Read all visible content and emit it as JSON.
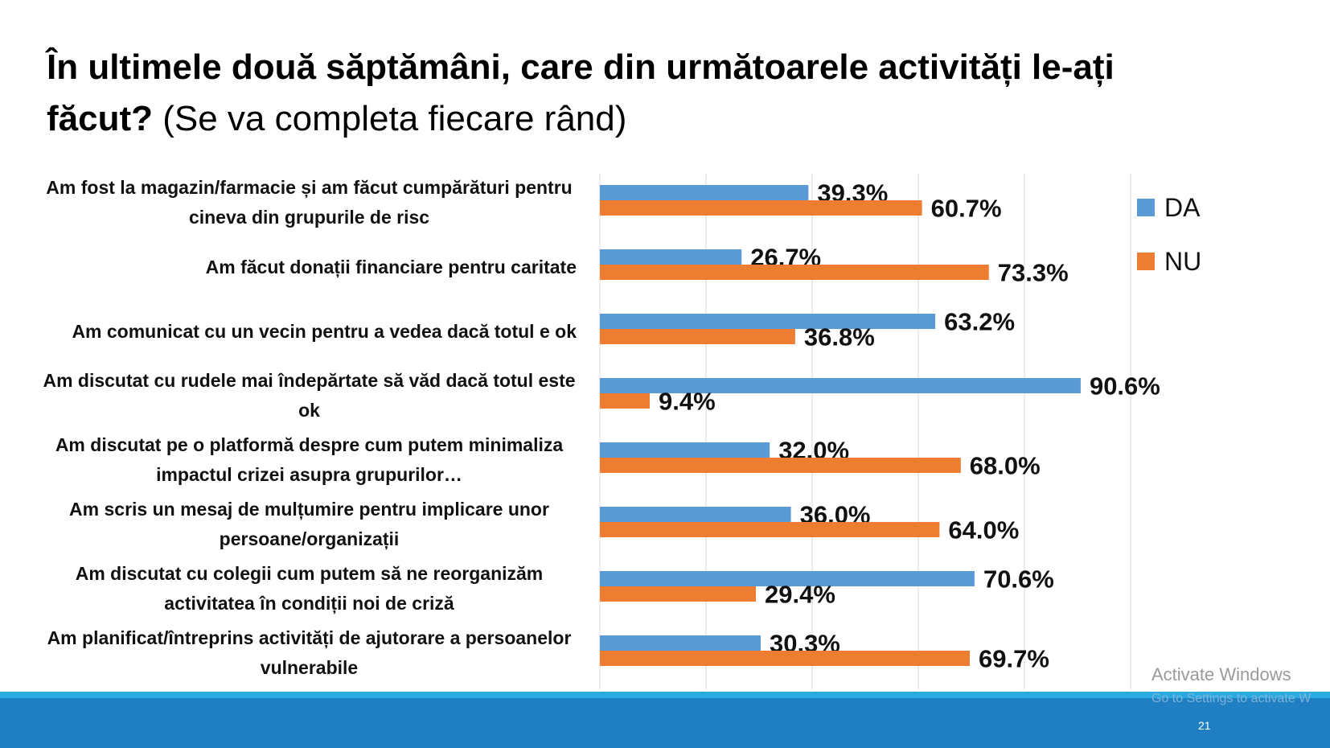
{
  "chart_data": {
    "type": "bar",
    "orientation": "horizontal",
    "title": "În ultimele două săptămâni, care din următoarele activități le-ați făcut?",
    "subtitle": "(Se va completa fiecare rând)",
    "categories": [
      "Am fost la magazin/farmacie și am făcut cumpărături pentru cineva din grupurile de risc",
      "Am făcut donații financiare pentru caritate",
      "Am comunicat cu un vecin pentru a vedea dacă totul e ok",
      "Am discutat cu rudele mai îndepărtate să văd dacă totul este ok",
      "Am discutat pe o platformă despre cum putem minimaliza impactul crizei asupra grupurilor…",
      "Am scris un mesaj de mulțumire pentru implicare unor persoane/organizații",
      "Am discutat cu colegii cum putem să ne reorganizăm activitatea în condiții noi de criză",
      "Am planificat/întreprins activități de ajutorare a persoanelor vulnerabile"
    ],
    "series": [
      {
        "name": "DA",
        "color": "#5b9bd5",
        "values": [
          39.3,
          26.7,
          63.2,
          90.6,
          32.0,
          36.0,
          70.6,
          30.3
        ],
        "value_labels": [
          "39.3%",
          "26.7%",
          "63.2%",
          "90.6%",
          "32.0%",
          "36.0%",
          "70.6%",
          "30.3%"
        ]
      },
      {
        "name": "NU",
        "color": "#ed7d31",
        "values": [
          60.7,
          73.3,
          36.8,
          9.4,
          68.0,
          64.0,
          29.4,
          69.7
        ],
        "value_labels": [
          "60.7%",
          "73.3%",
          "36.8%",
          "9.4%",
          "68.0%",
          "64.0%",
          "29.4%",
          "69.7%"
        ]
      }
    ],
    "xlim": [
      0,
      100
    ],
    "xticks": [
      0,
      20,
      40,
      60,
      80,
      100
    ],
    "grid": true,
    "legend": "right",
    "footer": {
      "page_number": "21"
    },
    "watermark": {
      "line1": "Activate Windows",
      "line2": "Go to Settings to activate W"
    }
  }
}
